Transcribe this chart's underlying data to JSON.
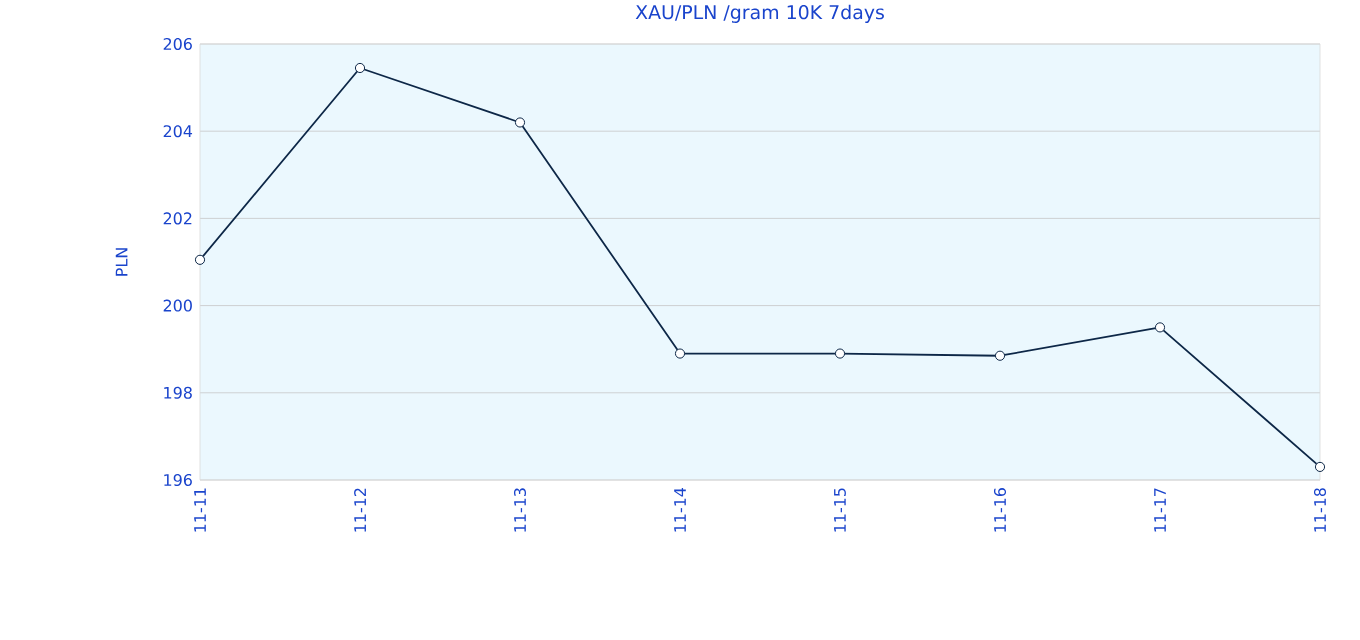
{
  "chart_data": {
    "type": "line",
    "title": "XAU/PLN /gram 10K 7days",
    "ylabel": "PLN",
    "categories": [
      "11-11",
      "11-12",
      "11-13",
      "11-14",
      "11-15",
      "11-16",
      "11-17",
      "11-18"
    ],
    "series": [
      {
        "color": "#0d2747",
        "values": [
          201.05,
          205.45,
          204.2,
          198.9,
          198.9,
          198.85,
          199.5,
          196.3
        ]
      }
    ],
    "ylim": [
      196,
      206
    ],
    "yticks": [
      196,
      198,
      200,
      202,
      204,
      206
    ],
    "grid": "y",
    "marker": "circle",
    "line_style": "solid"
  }
}
